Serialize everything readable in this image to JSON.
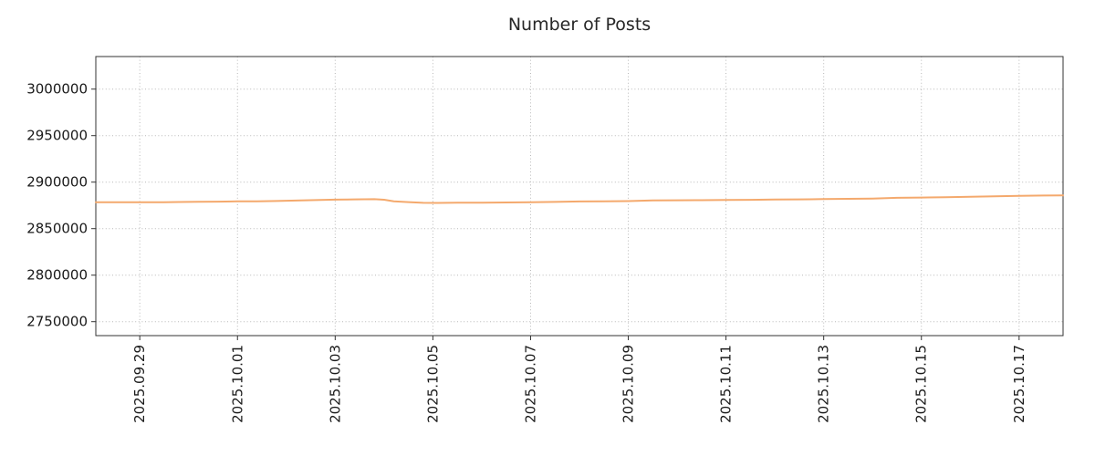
{
  "chart_data": {
    "type": "line",
    "title": "Number of Posts",
    "xlabel": "",
    "ylabel": "",
    "grid": "dotted",
    "legend": "none",
    "line_color": "#f4a96d",
    "xlim": [
      0.1,
      19.9
    ],
    "ylim": [
      2735000,
      3035000
    ],
    "y_ticks": [
      2750000,
      2800000,
      2850000,
      2900000,
      2950000,
      3000000
    ],
    "x_ticks": [
      {
        "pos": 1,
        "label": "2025.09.29"
      },
      {
        "pos": 3,
        "label": "2025.10.01"
      },
      {
        "pos": 5,
        "label": "2025.10.03"
      },
      {
        "pos": 7,
        "label": "2025.10.05"
      },
      {
        "pos": 9,
        "label": "2025.10.07"
      },
      {
        "pos": 11,
        "label": "2025.10.09"
      },
      {
        "pos": 13,
        "label": "2025.10.11"
      },
      {
        "pos": 15,
        "label": "2025.10.13"
      },
      {
        "pos": 17,
        "label": "2025.10.15"
      },
      {
        "pos": 19,
        "label": "2025.10.17"
      }
    ],
    "series": [
      {
        "name": "Number of Posts",
        "color": "#f4a96d",
        "points": [
          [
            0.1,
            2878300
          ],
          [
            0.5,
            2878350
          ],
          [
            1.0,
            2878400
          ],
          [
            1.5,
            2878300
          ],
          [
            1.8,
            2878600
          ],
          [
            2.2,
            2878800
          ],
          [
            2.6,
            2879000
          ],
          [
            3.0,
            2879300
          ],
          [
            3.4,
            2879400
          ],
          [
            3.8,
            2879700
          ],
          [
            4.2,
            2880200
          ],
          [
            4.6,
            2880700
          ],
          [
            5.0,
            2881200
          ],
          [
            5.4,
            2881500
          ],
          [
            5.8,
            2881700
          ],
          [
            6.0,
            2881100
          ],
          [
            6.2,
            2879400
          ],
          [
            6.5,
            2878500
          ],
          [
            6.8,
            2877700
          ],
          [
            7.1,
            2877600
          ],
          [
            7.5,
            2877800
          ],
          [
            8.0,
            2877900
          ],
          [
            8.5,
            2878100
          ],
          [
            9.0,
            2878300
          ],
          [
            9.5,
            2878700
          ],
          [
            10.0,
            2879200
          ],
          [
            10.5,
            2879300
          ],
          [
            11.0,
            2879600
          ],
          [
            11.5,
            2880300
          ],
          [
            12.0,
            2880500
          ],
          [
            12.5,
            2880600
          ],
          [
            13.0,
            2880800
          ],
          [
            13.5,
            2881000
          ],
          [
            14.0,
            2881300
          ],
          [
            14.5,
            2881500
          ],
          [
            15.0,
            2881800
          ],
          [
            15.5,
            2882100
          ],
          [
            16.0,
            2882400
          ],
          [
            16.5,
            2883100
          ],
          [
            17.0,
            2883400
          ],
          [
            17.5,
            2883700
          ],
          [
            18.0,
            2884300
          ],
          [
            18.5,
            2884700
          ],
          [
            19.0,
            2885200
          ],
          [
            19.5,
            2885600
          ],
          [
            19.9,
            2885800
          ]
        ]
      }
    ]
  }
}
